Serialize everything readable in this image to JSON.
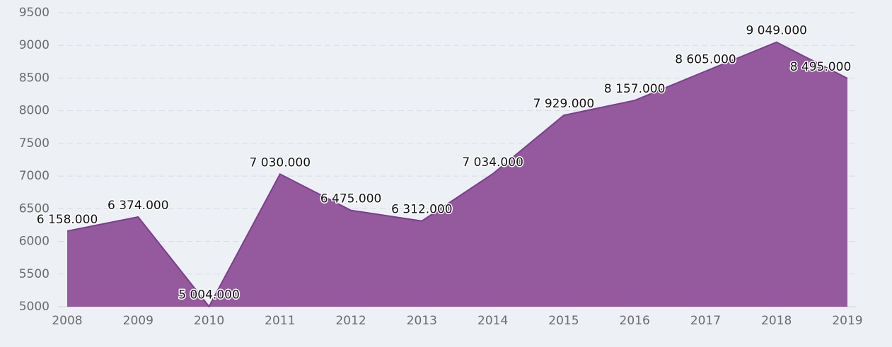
{
  "chart_data": {
    "type": "area",
    "categories": [
      "2008",
      "2009",
      "2010",
      "2011",
      "2012",
      "2013",
      "2014",
      "2015",
      "2016",
      "2017",
      "2018",
      "2019"
    ],
    "values": [
      6158,
      6374,
      5004,
      7030,
      6475,
      6312,
      7034,
      7929,
      8157,
      8605,
      9049,
      8495
    ],
    "value_labels": [
      "6 158.000",
      "6 374.000",
      "5 004.000",
      "7 030.000",
      "6 475.000",
      "6 312.000",
      "7 034.000",
      "7 929.000",
      "8 157.000",
      "8 605.000",
      "9 049.000",
      "8 495.000"
    ],
    "color": "#955a9d",
    "line_color": "#7b3f8b",
    "ylim": [
      5000,
      9500
    ],
    "yticks": [
      5000,
      5500,
      6000,
      6500,
      7000,
      7500,
      8000,
      8500,
      9000,
      9500
    ],
    "grid": true
  }
}
